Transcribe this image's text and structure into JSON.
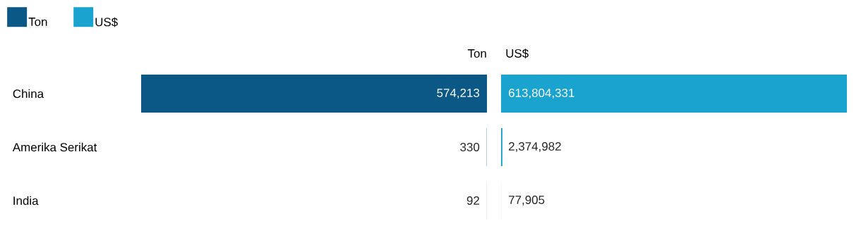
{
  "chart_data": [
    {
      "type": "bar",
      "orientation": "horizontal",
      "title": "Ton",
      "categories": [
        "China",
        "Amerika Serikat",
        "India"
      ],
      "xlim": [
        574213,
        0
      ],
      "legend": "top left",
      "series": [
        {
          "name": "Ton",
          "color": "#0b5785",
          "values": [
            574213,
            330,
            92
          ],
          "value_labels": [
            "574,213",
            "330",
            "92"
          ]
        }
      ]
    },
    {
      "type": "bar",
      "orientation": "horizontal",
      "title": "US$",
      "categories": [
        null,
        null,
        null
      ],
      "xlim": [
        0,
        613804331
      ],
      "legend": "top left",
      "series": [
        {
          "name": "US$",
          "color": "#1ba3cf",
          "values": [
            613804331,
            2374982,
            77905
          ],
          "value_labels": [
            "613,804,331",
            "2,374,982",
            "77,905"
          ]
        }
      ]
    }
  ]
}
